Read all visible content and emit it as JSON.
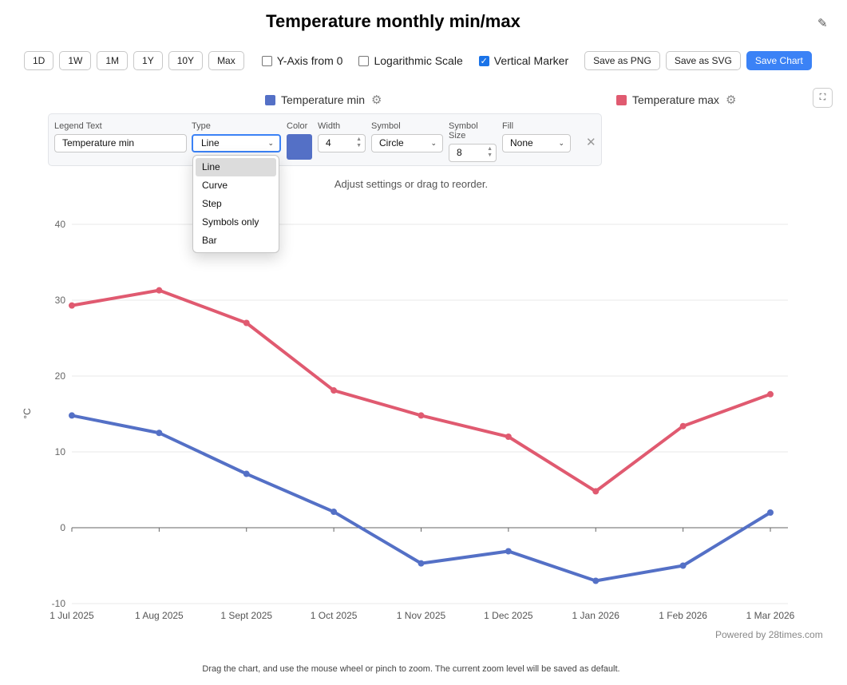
{
  "title": "Temperature monthly min/max",
  "toolbar": {
    "ranges": [
      "1D",
      "1W",
      "1M",
      "1Y",
      "10Y",
      "Max"
    ],
    "yaxis_zero": "Y-Axis from 0",
    "log_scale": "Logarithmic Scale",
    "vertical_marker": "Vertical Marker",
    "save_png": "Save as PNG",
    "save_svg": "Save as SVG",
    "save_chart": "Save Chart"
  },
  "legend": {
    "min_label": "Temperature min",
    "max_label": "Temperature max",
    "min_color": "#5470c6",
    "max_color": "#e05a70"
  },
  "settings": {
    "legend_text_label": "Legend Text",
    "legend_text_value": "Temperature min",
    "type_label": "Type",
    "type_value": "Line",
    "color_label": "Color",
    "width_label": "Width",
    "width_value": "4",
    "symbol_label": "Symbol",
    "symbol_value": "Circle",
    "symbol_size_label": "Symbol Size",
    "symbol_size_value": "8",
    "fill_label": "Fill",
    "fill_value": "None",
    "type_options": [
      "Line",
      "Curve",
      "Step",
      "Symbols only",
      "Bar"
    ]
  },
  "hint": "Adjust settings or drag to reorder.",
  "footer": {
    "powered": "Powered by 28times.com",
    "note": "Drag the chart, and use the mouse wheel or pinch to zoom. The current zoom level will be saved as default."
  },
  "chart_data": {
    "type": "line",
    "categories": [
      "1 Jul 2025",
      "1 Aug 2025",
      "1 Sept 2025",
      "1 Oct 2025",
      "1 Nov 2025",
      "1 Dec 2025",
      "1 Jan 2026",
      "1 Feb 2026",
      "1 Mar 2026"
    ],
    "series": [
      {
        "name": "Temperature min",
        "color": "#5470c6",
        "values": [
          14.8,
          12.5,
          7.1,
          2.1,
          -4.7,
          -3.1,
          -7.0,
          -5.0,
          2.0
        ]
      },
      {
        "name": "Temperature max",
        "color": "#e05a70",
        "values": [
          29.3,
          31.3,
          27.0,
          18.1,
          14.8,
          12.0,
          4.8,
          13.4,
          17.6
        ]
      }
    ],
    "ylabel": "°C",
    "ylim": [
      -10,
      40
    ],
    "yticks": [
      -10,
      0,
      10,
      20,
      30,
      40
    ]
  }
}
